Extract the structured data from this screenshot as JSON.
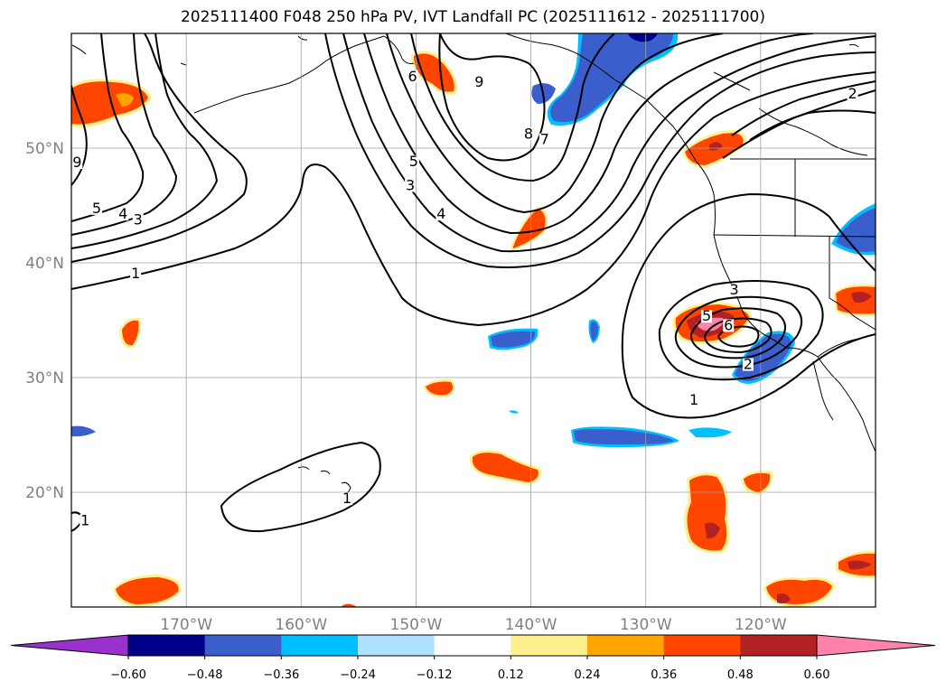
{
  "title": "2025111400 F048 250 hPa PV, IVT Landfall PC (2025111612 - 2025111700)",
  "map": {
    "extent": {
      "lon_min": -180,
      "lon_max": -110,
      "lat_min": 10,
      "lat_max": 60
    },
    "lat_ticks": [
      {
        "value": 50,
        "label": "50°N"
      },
      {
        "value": 40,
        "label": "40°N"
      },
      {
        "value": 30,
        "label": "30°N"
      },
      {
        "value": 20,
        "label": "20°N"
      }
    ],
    "lon_ticks": [
      {
        "value": -170,
        "label": "170°W"
      },
      {
        "value": -160,
        "label": "160°W"
      },
      {
        "value": -150,
        "label": "150°W"
      },
      {
        "value": -140,
        "label": "140°W"
      },
      {
        "value": -130,
        "label": "130°W"
      },
      {
        "value": -120,
        "label": "120°W"
      }
    ],
    "gridlines": true,
    "pv_contour_labels": [
      {
        "text": "2",
        "lon": -112.0,
        "lat": 54.5
      },
      {
        "text": "9",
        "lon": -144.5,
        "lat": 55.5
      },
      {
        "text": "6",
        "lon": -150.3,
        "lat": 56.0
      },
      {
        "text": "8",
        "lon": -140.2,
        "lat": 51.0
      },
      {
        "text": "7",
        "lon": -138.8,
        "lat": 50.5
      },
      {
        "text": "9",
        "lon": -179.5,
        "lat": 48.5
      },
      {
        "text": "5",
        "lon": -150.2,
        "lat": 48.6
      },
      {
        "text": "3",
        "lon": -150.5,
        "lat": 46.5
      },
      {
        "text": "4",
        "lon": -147.8,
        "lat": 44.0
      },
      {
        "text": "5",
        "lon": -177.8,
        "lat": 44.5
      },
      {
        "text": "4",
        "lon": -175.5,
        "lat": 44.0
      },
      {
        "text": "3",
        "lon": -174.2,
        "lat": 43.5
      },
      {
        "text": "1",
        "lon": -174.4,
        "lat": 38.8
      },
      {
        "text": "3",
        "lon": -122.3,
        "lat": 37.4
      },
      {
        "text": "5",
        "lon": -124.7,
        "lat": 35.1
      },
      {
        "text": "6",
        "lon": -122.8,
        "lat": 34.3
      },
      {
        "text": "2",
        "lon": -121.1,
        "lat": 30.9
      },
      {
        "text": "1",
        "lon": -125.8,
        "lat": 27.8
      },
      {
        "text": "1",
        "lon": -156.0,
        "lat": 19.2
      },
      {
        "text": "1",
        "lon": -178.8,
        "lat": 17.3
      }
    ]
  },
  "colorbar": {
    "levels": [
      -0.6,
      -0.48,
      -0.36,
      -0.24,
      -0.12,
      0.12,
      0.24,
      0.36,
      0.48,
      0.6
    ],
    "tick_labels": [
      "−0.60",
      "−0.48",
      "−0.36",
      "−0.24",
      "−0.12",
      "0.12",
      "0.24",
      "0.36",
      "0.48",
      "0.60"
    ],
    "colors": [
      "#9932cc",
      "#00008b",
      "#3a5fcd",
      "#00bfff",
      "#b0e2ff",
      "#ffffff",
      "#fff08f",
      "#ffa500",
      "#ff4500",
      "#b22222",
      "#ff82ab"
    ],
    "extend": "both"
  },
  "colors": {
    "neg_dark": "#00008b",
    "neg_mid": "#3a5fcd",
    "neg_light": "#00bfff",
    "pos_light": "#fff08f",
    "pos_mid": "#ffa500",
    "pos_strong": "#ff4500",
    "pos_dark": "#b22222",
    "pos_max": "#ff82ab",
    "grid": "#a0a0a0",
    "contour": "#000000"
  }
}
